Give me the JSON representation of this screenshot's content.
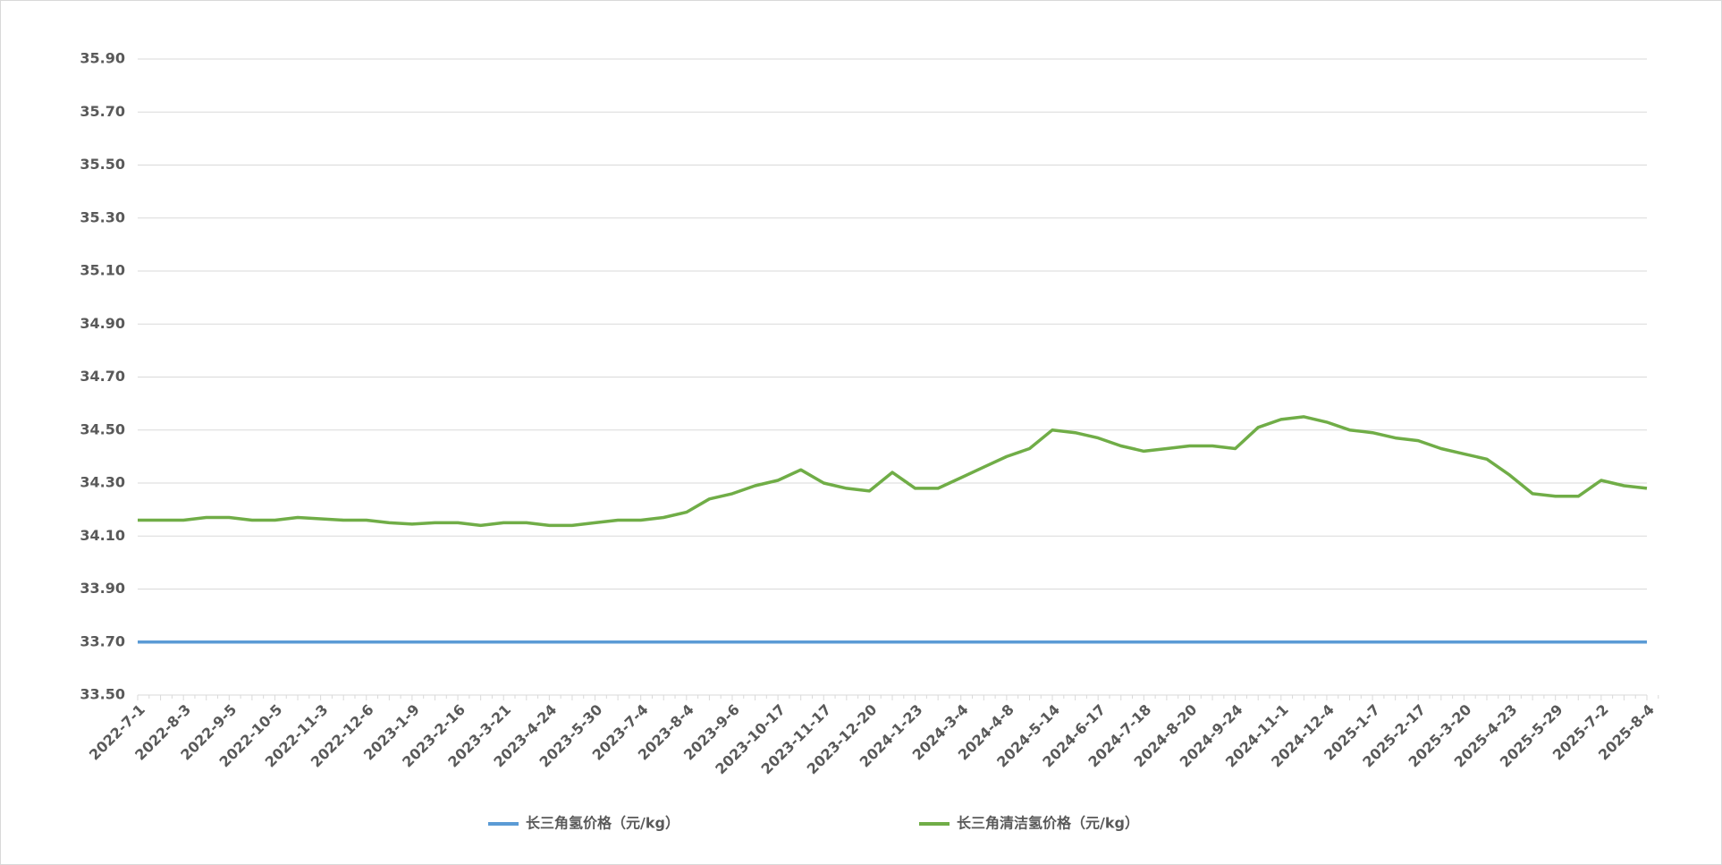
{
  "chart_data": {
    "type": "line",
    "categories": [
      "2022-7-1",
      null,
      "2022-8-3",
      null,
      "2022-9-5",
      null,
      "2022-10-5",
      null,
      "2022-11-3",
      null,
      "2022-12-6",
      null,
      "2023-1-9",
      null,
      "2023-2-16",
      null,
      "2023-3-21",
      null,
      "2023-4-24",
      null,
      "2023-5-30",
      null,
      "2023-7-4",
      null,
      "2023-8-4",
      null,
      "2023-9-6",
      null,
      "2023-10-17",
      null,
      "2023-11-17",
      null,
      "2023-12-20",
      null,
      "2024-1-23",
      null,
      "2024-3-4",
      null,
      "2024-4-8",
      null,
      "2024-5-14",
      null,
      "2024-6-17",
      null,
      "2024-7-18",
      null,
      "2024-8-20",
      null,
      "2024-9-24",
      null,
      "2024-11-1",
      null,
      "2024-12-4",
      null,
      "2025-1-7",
      null,
      "2025-2-17",
      null,
      "2025-3-20",
      null,
      "2025-4-23",
      null,
      "2025-5-29",
      null,
      "2025-7-2",
      null,
      "2025-8-4"
    ],
    "series": [
      {
        "name": "长三角氢价格（元/kg）",
        "color": "#5b9bd5",
        "values": [
          33.7,
          33.7,
          33.7,
          33.7,
          33.7,
          33.7,
          33.7,
          33.7,
          33.7,
          33.7,
          33.7,
          33.7,
          33.7,
          33.7,
          33.7,
          33.7,
          33.7,
          33.7,
          33.7,
          33.7,
          33.7,
          33.7,
          33.7,
          33.7,
          33.7,
          33.7,
          33.7,
          33.7,
          33.7,
          33.7,
          33.7,
          33.7,
          33.7,
          33.7,
          33.7,
          33.7,
          33.7,
          33.7,
          33.7,
          33.7,
          33.7,
          33.7,
          33.7,
          33.7,
          33.7,
          33.7,
          33.7,
          33.7,
          33.7,
          33.7,
          33.7,
          33.7,
          33.7,
          33.7,
          33.7,
          33.7,
          33.7,
          33.7,
          33.7,
          33.7,
          33.7,
          33.7,
          33.7,
          33.7,
          33.7,
          33.7,
          33.7
        ]
      },
      {
        "name": "长三角清洁氢价格（元/kg）",
        "color": "#70ad47",
        "values": [
          34.16,
          34.16,
          34.16,
          34.17,
          34.17,
          34.16,
          34.16,
          34.17,
          34.165,
          34.16,
          34.16,
          34.15,
          34.145,
          34.15,
          34.15,
          34.14,
          34.15,
          34.15,
          34.14,
          34.14,
          34.15,
          34.16,
          34.16,
          34.17,
          34.19,
          34.24,
          34.26,
          34.29,
          34.31,
          34.35,
          34.3,
          34.28,
          34.27,
          34.34,
          34.28,
          34.28,
          34.32,
          34.36,
          34.4,
          34.43,
          34.5,
          34.49,
          34.47,
          34.44,
          34.42,
          34.43,
          34.44,
          34.44,
          34.43,
          34.51,
          34.54,
          34.55,
          34.53,
          34.5,
          34.49,
          34.47,
          34.46,
          34.43,
          34.41,
          34.39,
          34.33,
          34.26,
          34.25,
          34.25,
          34.31,
          34.29,
          34.28
        ]
      }
    ],
    "ylim": [
      33.5,
      35.9
    ],
    "yticks": [
      {
        "value": 33.5,
        "label": "33.50"
      },
      {
        "value": 33.7,
        "label": "33.70"
      },
      {
        "value": 33.9,
        "label": "33.90"
      },
      {
        "value": 34.1,
        "label": "34.10"
      },
      {
        "value": 34.3,
        "label": "34.30"
      },
      {
        "value": 34.5,
        "label": "34.50"
      },
      {
        "value": 34.7,
        "label": "34.70"
      },
      {
        "value": 34.9,
        "label": "34.90"
      },
      {
        "value": 35.1,
        "label": "35.10"
      },
      {
        "value": 35.3,
        "label": "35.30"
      },
      {
        "value": 35.5,
        "label": "35.50"
      },
      {
        "value": 35.7,
        "label": "35.70"
      },
      {
        "value": 35.9,
        "label": "35.90"
      }
    ],
    "grid": true,
    "legend": "bottom"
  }
}
